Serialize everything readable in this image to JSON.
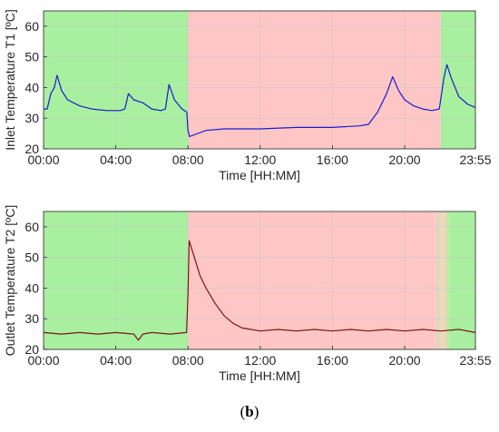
{
  "caption": {
    "open": "(",
    "letter": "b",
    "close": ")"
  },
  "colors": {
    "green_zone": "#a8f0a0",
    "red_zone": "#ffc6c6",
    "t1_line": "#1a1ad0",
    "t2_line": "#7a1414",
    "grid": "#c8c8c8"
  },
  "chart_data": [
    {
      "type": "line",
      "title": "",
      "xlabel": "Time [HH:MM]",
      "ylabel": "Inlet Temperature T1 [ºC]",
      "xlim": [
        "00:00",
        "23:55"
      ],
      "ylim": [
        20,
        65
      ],
      "x_ticks": [
        "00:00",
        "04:00",
        "08:00",
        "12:00",
        "16:00",
        "20:00",
        "23:55"
      ],
      "y_ticks": [
        20,
        30,
        40,
        50,
        60
      ],
      "grid": true,
      "regions": [
        {
          "color": "green",
          "start": "00:00",
          "end": "08:00"
        },
        {
          "color": "red",
          "start": "08:00",
          "end": "22:00"
        },
        {
          "color": "green",
          "start": "22:00",
          "end": "23:55"
        }
      ],
      "series": [
        {
          "color": "blue",
          "points": [
            [
              "00:00",
              33
            ],
            [
              "00:12",
              33
            ],
            [
              "00:24",
              38
            ],
            [
              "00:36",
              40
            ],
            [
              "00:45",
              44
            ],
            [
              "01:00",
              39
            ],
            [
              "01:20",
              36
            ],
            [
              "02:00",
              34
            ],
            [
              "02:40",
              33
            ],
            [
              "03:30",
              32.5
            ],
            [
              "04:15",
              32.5
            ],
            [
              "04:30",
              33
            ],
            [
              "04:42",
              38
            ],
            [
              "05:00",
              36
            ],
            [
              "05:30",
              35
            ],
            [
              "06:00",
              33
            ],
            [
              "06:30",
              32.5
            ],
            [
              "06:45",
              33
            ],
            [
              "06:57",
              41
            ],
            [
              "07:15",
              36
            ],
            [
              "07:40",
              33
            ],
            [
              "07:56",
              32
            ],
            [
              "08:00",
              26
            ],
            [
              "08:05",
              24
            ],
            [
              "09:00",
              26
            ],
            [
              "10:00",
              26.5
            ],
            [
              "12:00",
              26.5
            ],
            [
              "14:00",
              27
            ],
            [
              "16:00",
              27
            ],
            [
              "17:30",
              27.5
            ],
            [
              "18:00",
              28
            ],
            [
              "18:30",
              32
            ],
            [
              "19:00",
              38
            ],
            [
              "19:20",
              43.5
            ],
            [
              "19:40",
              39
            ],
            [
              "20:00",
              36
            ],
            [
              "20:30",
              34
            ],
            [
              "21:00",
              33
            ],
            [
              "21:30",
              32.5
            ],
            [
              "21:55",
              33
            ],
            [
              "22:10",
              43
            ],
            [
              "22:20",
              47.5
            ],
            [
              "22:35",
              43
            ],
            [
              "23:00",
              37
            ],
            [
              "23:30",
              34.5
            ],
            [
              "23:55",
              33.5
            ]
          ]
        }
      ]
    },
    {
      "type": "line",
      "title": "",
      "xlabel": "Time [HH:MM]",
      "ylabel": "Outlet Temperature T2 [ºC]",
      "xlim": [
        "00:00",
        "23:55"
      ],
      "ylim": [
        20,
        65
      ],
      "x_ticks": [
        "00:00",
        "04:00",
        "08:00",
        "12:00",
        "16:00",
        "20:00",
        "23:55"
      ],
      "y_ticks": [
        20,
        30,
        40,
        50,
        60
      ],
      "grid": true,
      "regions": [
        {
          "color": "green",
          "start": "00:00",
          "end": "08:00"
        },
        {
          "color": "red",
          "start": "08:00",
          "end": "21:40"
        },
        {
          "color": "mixed",
          "start": "21:40",
          "end": "22:30"
        },
        {
          "color": "green",
          "start": "22:30",
          "end": "23:55"
        }
      ],
      "series": [
        {
          "color": "dark red",
          "points": [
            [
              "00:00",
              25.5
            ],
            [
              "01:00",
              25
            ],
            [
              "02:00",
              25.5
            ],
            [
              "03:00",
              25
            ],
            [
              "04:00",
              25.5
            ],
            [
              "05:00",
              25
            ],
            [
              "05:15",
              23
            ],
            [
              "05:30",
              25
            ],
            [
              "06:00",
              25.5
            ],
            [
              "07:00",
              25
            ],
            [
              "07:55",
              25.5
            ],
            [
              "08:00",
              38
            ],
            [
              "08:04",
              55.5
            ],
            [
              "08:15",
              52
            ],
            [
              "08:40",
              44
            ],
            [
              "09:00",
              40
            ],
            [
              "09:30",
              35
            ],
            [
              "10:00",
              31
            ],
            [
              "10:30",
              28.5
            ],
            [
              "11:00",
              27
            ],
            [
              "12:00",
              26
            ],
            [
              "13:00",
              26.5
            ],
            [
              "14:00",
              26
            ],
            [
              "15:00",
              26.5
            ],
            [
              "16:00",
              26
            ],
            [
              "17:00",
              26.5
            ],
            [
              "18:00",
              26
            ],
            [
              "19:00",
              26.5
            ],
            [
              "20:00",
              26
            ],
            [
              "21:00",
              26.5
            ],
            [
              "22:00",
              26
            ],
            [
              "23:00",
              26.5
            ],
            [
              "23:55",
              25.5
            ]
          ]
        }
      ]
    }
  ]
}
